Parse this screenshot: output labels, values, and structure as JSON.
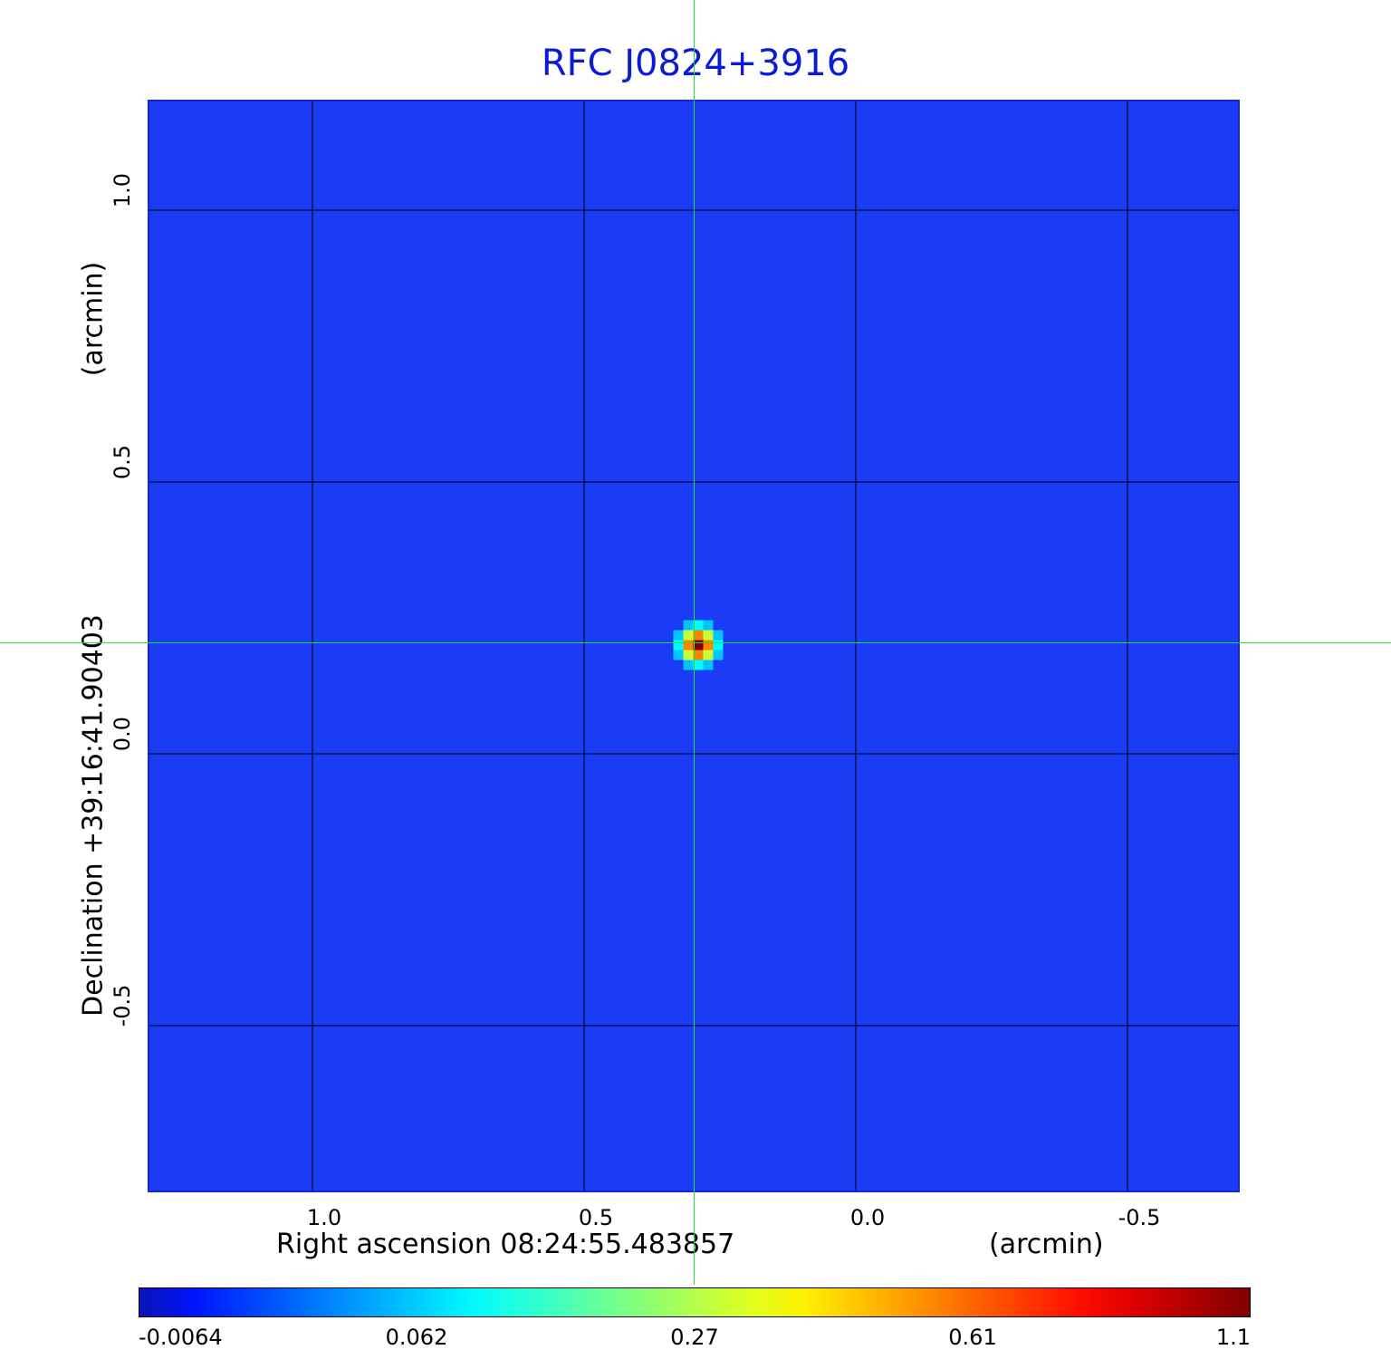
{
  "title": "RFC J0824+3916",
  "chart_data": {
    "type": "heatmap",
    "title": "RFC J0824+3916",
    "xlabel": "Right ascension  08:24:55.483857",
    "xunit": "(arcmin)",
    "ylabel": "Declination  +39:16:41.90403",
    "yunit": "(arcmin)",
    "xlim": [
      1.3,
      -0.71
    ],
    "ylim": [
      -0.81,
      1.2
    ],
    "x_ticks": [
      1.0,
      0.5,
      0.0,
      -0.5
    ],
    "x_tick_labels": [
      "1.0",
      "0.5",
      "0.0",
      "-0.5"
    ],
    "y_ticks": [
      1.0,
      0.5,
      0.0,
      -0.5
    ],
    "y_tick_labels": [
      "1.0",
      "0.5",
      "0.0",
      "-0.5"
    ],
    "grid": true,
    "source": {
      "x": 0.29,
      "y": 0.2,
      "peak": 1.1
    },
    "crosshair": {
      "x": 0.29,
      "y": 0.2
    },
    "colorbar": {
      "ticks": [
        -0.0064,
        0.062,
        0.27,
        0.61,
        1.1
      ],
      "tick_labels": [
        "-0.0064",
        "0.062",
        "0.27",
        "0.61",
        "1.1"
      ],
      "colormap": "jet"
    },
    "colors": {
      "background": "#1a3cf5",
      "title": "#0b1ad6",
      "crosshair": "#22dd33",
      "grid": "#000000"
    }
  }
}
